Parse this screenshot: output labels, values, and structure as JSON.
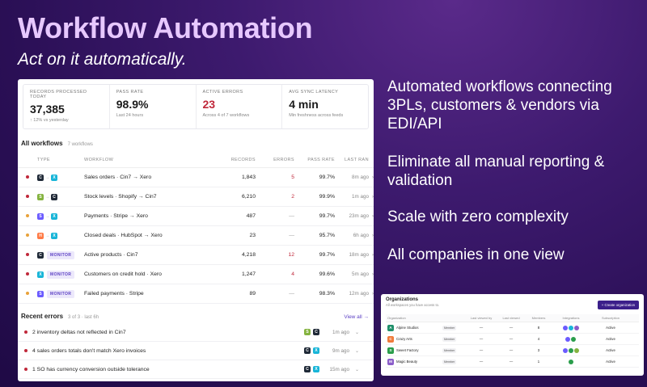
{
  "hero": {
    "title": "Workflow Automation",
    "subtitle": "Act on it automatically."
  },
  "bullets": [
    "Automated workflows connecting 3PLs, customers & vendors via EDI/API",
    "Eliminate all manual reporting & validation",
    "Scale with zero complexity",
    "All companies in one view"
  ],
  "kpis": [
    {
      "label": "RECORDS PROCESSED TODAY",
      "value": "37,385",
      "note": "↑ 12% vs yesterday"
    },
    {
      "label": "PASS RATE",
      "value": "98.9%",
      "note": "Last 24 hours"
    },
    {
      "label": "ACTIVE ERRORS",
      "value": "23",
      "note": "Across 4 of 7 workflows"
    },
    {
      "label": "AVG SYNC LATENCY",
      "value": "4 min",
      "note": "Min freshness across feeds"
    }
  ],
  "workflows": {
    "title": "All workflows",
    "count": "7 workflows",
    "headers": {
      "type": "TYPE",
      "workflow": "WORKFLOW",
      "records": "RECORDS",
      "errors": "ERRORS",
      "pass": "PASS RATE",
      "last": "LAST RAN"
    },
    "rows": [
      {
        "dot": "#c0283a",
        "from": "C",
        "from_color": "#1f2937",
        "to": "X",
        "to_color": "#18b5d8",
        "monitor": "",
        "name": "Sales orders · Cin7 → Xero",
        "records": "1,843",
        "errors": "5",
        "err_red": true,
        "pass": "99.7%",
        "last": "8m ago"
      },
      {
        "dot": "#c0283a",
        "from": "S",
        "from_color": "#84b33f",
        "to": "C",
        "to_color": "#1f2937",
        "monitor": "",
        "name": "Stock levels · Shopify → Cin7",
        "records": "6,210",
        "errors": "2",
        "err_red": true,
        "pass": "99.9%",
        "last": "1m ago"
      },
      {
        "dot": "#e8a23a",
        "from": "S",
        "from_color": "#6b5bff",
        "to": "X",
        "to_color": "#18b5d8",
        "monitor": "",
        "name": "Payments · Stripe → Xero",
        "records": "487",
        "errors": "—",
        "err_red": false,
        "pass": "99.7%",
        "last": "23m ago"
      },
      {
        "dot": "#e8a23a",
        "from": "H",
        "from_color": "#ff7a45",
        "to": "X",
        "to_color": "#18b5d8",
        "monitor": "",
        "name": "Closed deals · HubSpot → Xero",
        "records": "23",
        "errors": "—",
        "err_red": false,
        "pass": "95.7%",
        "last": "6h ago"
      },
      {
        "dot": "#c0283a",
        "from": "C",
        "from_color": "#1f2937",
        "to": "",
        "to_color": "",
        "monitor": "MONITOR",
        "name": "Active products · Cin7",
        "records": "4,218",
        "errors": "12",
        "err_red": true,
        "pass": "99.7%",
        "last": "18m ago"
      },
      {
        "dot": "#c0283a",
        "from": "X",
        "from_color": "#18b5d8",
        "to": "",
        "to_color": "",
        "monitor": "MONITOR",
        "name": "Customers on credit hold · Xero",
        "records": "1,247",
        "errors": "4",
        "err_red": true,
        "pass": "99.6%",
        "last": "5m ago"
      },
      {
        "dot": "#e8a23a",
        "from": "S",
        "from_color": "#6b5bff",
        "to": "",
        "to_color": "",
        "monitor": "MONITOR",
        "name": "Failed payments · Stripe",
        "records": "89",
        "errors": "—",
        "err_red": false,
        "pass": "98.3%",
        "last": "12m ago"
      }
    ]
  },
  "errors": {
    "title": "Recent errors",
    "count": "3 of 3 · last 6h",
    "view_all": "View all →",
    "rows": [
      {
        "msg": "2 inventory deltas not reflected in Cin7",
        "a": "S",
        "a_color": "#84b33f",
        "b": "C",
        "b_color": "#1f2937",
        "time": "1m ago"
      },
      {
        "msg": "4 sales orders totals don't match Xero invoices",
        "a": "C",
        "a_color": "#1f2937",
        "b": "X",
        "b_color": "#18b5d8",
        "time": "9m ago"
      },
      {
        "msg": "1 SO has currency conversion outside tolerance",
        "a": "C",
        "a_color": "#1f2937",
        "b": "X",
        "b_color": "#18b5d8",
        "time": "15m ago"
      }
    ]
  },
  "orgs": {
    "title": "Organizations",
    "subtitle": "All workspaces you have access to.",
    "create": "+ Create organization",
    "headers": {
      "name": "Organization",
      "lvb": "Last viewed by",
      "lv": "Last viewed",
      "members": "Members",
      "integrations": "Integrations",
      "subscription": "Subscription"
    },
    "rows": [
      {
        "badge": "A",
        "color": "#1f8f6a",
        "name": "Alpine Studios",
        "role": "Member",
        "lvb": "—",
        "lv": "—",
        "members": "8",
        "status": "Active"
      },
      {
        "badge": "C",
        "color": "#f07a3a",
        "name": "Crazy Arts",
        "role": "Member",
        "lvb": "—",
        "lv": "—",
        "members": "4",
        "status": "Active"
      },
      {
        "badge": "S",
        "color": "#2a9d4b",
        "name": "Sweet Factory",
        "role": "Member",
        "lvb": "—",
        "lv": "—",
        "members": "3",
        "status": "Active"
      },
      {
        "badge": "M",
        "color": "#8a5cc9",
        "name": "Magic Beauty",
        "role": "Member",
        "lvb": "—",
        "lv": "—",
        "members": "1",
        "status": "Active"
      }
    ]
  }
}
